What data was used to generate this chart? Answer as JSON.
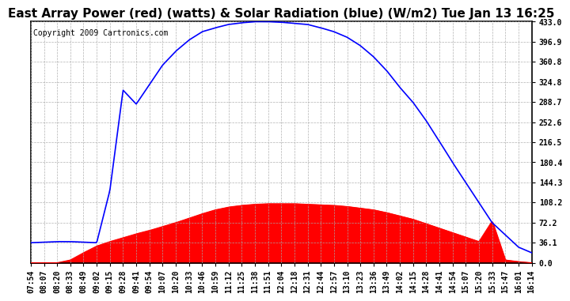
{
  "title": "East Array Power (red) (watts) & Solar Radiation (blue) (W/m2) Tue Jan 13 16:25",
  "copyright": "Copyright 2009 Cartronics.com",
  "ylim": [
    0.0,
    433.0
  ],
  "yticks": [
    0.0,
    36.1,
    72.2,
    108.2,
    144.3,
    180.4,
    216.5,
    252.6,
    288.7,
    324.8,
    360.8,
    396.9,
    433.0
  ],
  "blue_color": "#0000FF",
  "red_color": "#FF0000",
  "red_fill_color": "#FF0000",
  "background_color": "#FFFFFF",
  "grid_color": "#AAAAAA",
  "title_fontsize": 11,
  "copyright_fontsize": 7,
  "tick_fontsize": 7,
  "x_times": [
    "07:54",
    "08:07",
    "08:20",
    "08:33",
    "08:49",
    "09:02",
    "09:15",
    "09:28",
    "09:41",
    "09:54",
    "10:07",
    "10:20",
    "10:33",
    "10:46",
    "10:59",
    "11:12",
    "11:25",
    "11:38",
    "11:51",
    "12:04",
    "12:18",
    "12:31",
    "12:44",
    "12:57",
    "13:10",
    "13:23",
    "13:36",
    "13:49",
    "14:02",
    "14:15",
    "14:28",
    "14:41",
    "14:54",
    "15:07",
    "15:20",
    "15:33",
    "15:47",
    "16:01",
    "16:14"
  ],
  "blue_vals": [
    36,
    37,
    38,
    38,
    37,
    36,
    130,
    310,
    285,
    320,
    355,
    380,
    400,
    415,
    422,
    428,
    431,
    433,
    433,
    432,
    430,
    428,
    422,
    415,
    405,
    390,
    370,
    345,
    315,
    288,
    255,
    218,
    180,
    144,
    108,
    72,
    50,
    28,
    18
  ],
  "red_vals": [
    0,
    0,
    0,
    5,
    18,
    30,
    38,
    45,
    52,
    58,
    65,
    72,
    80,
    88,
    95,
    100,
    103,
    105,
    106,
    106,
    106,
    105,
    104,
    103,
    101,
    98,
    95,
    90,
    84,
    78,
    70,
    62,
    54,
    46,
    38,
    75,
    5,
    2,
    0
  ]
}
